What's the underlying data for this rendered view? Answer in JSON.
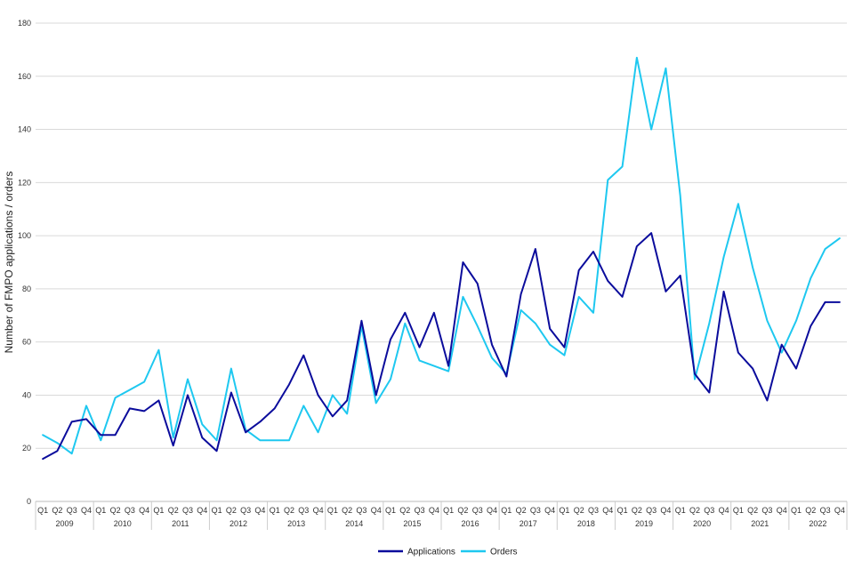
{
  "chart_data": {
    "type": "line",
    "title": "",
    "xlabel": "",
    "ylabel": "Number of FMPO applications / orders",
    "ylim": [
      0,
      180
    ],
    "yticks": [
      0,
      20,
      40,
      60,
      80,
      100,
      120,
      140,
      160,
      180
    ],
    "grid": true,
    "legend_position": "bottom",
    "years": [
      "2009",
      "2010",
      "2011",
      "2012",
      "2013",
      "2014",
      "2015",
      "2016",
      "2017",
      "2018",
      "2019",
      "2020",
      "2021",
      "2022"
    ],
    "quarters": [
      "Q1",
      "Q2",
      "Q3",
      "Q4"
    ],
    "series": [
      {
        "name": "Applications",
        "color": "#0b0c9c",
        "values": [
          16,
          19,
          30,
          31,
          25,
          25,
          35,
          34,
          38,
          21,
          40,
          24,
          19,
          41,
          26,
          30,
          35,
          44,
          55,
          40,
          32,
          38,
          68,
          40,
          61,
          71,
          58,
          71,
          51,
          90,
          82,
          59,
          47,
          78,
          95,
          65,
          58,
          87,
          94,
          83,
          77,
          96,
          101,
          79,
          85,
          48,
          41,
          79,
          56,
          50,
          38,
          59,
          50,
          66,
          75,
          75
        ]
      },
      {
        "name": "Orders",
        "color": "#1ec8f0",
        "values": [
          25,
          22,
          18,
          36,
          23,
          39,
          42,
          45,
          57,
          24,
          46,
          29,
          23,
          50,
          27,
          23,
          23,
          23,
          36,
          26,
          40,
          33,
          66,
          37,
          46,
          67,
          53,
          51,
          49,
          77,
          66,
          54,
          48,
          72,
          67,
          59,
          55,
          77,
          71,
          121,
          126,
          167,
          140,
          163,
          115,
          46,
          67,
          92,
          112,
          88,
          68,
          56,
          68,
          84,
          95,
          99
        ]
      }
    ]
  }
}
